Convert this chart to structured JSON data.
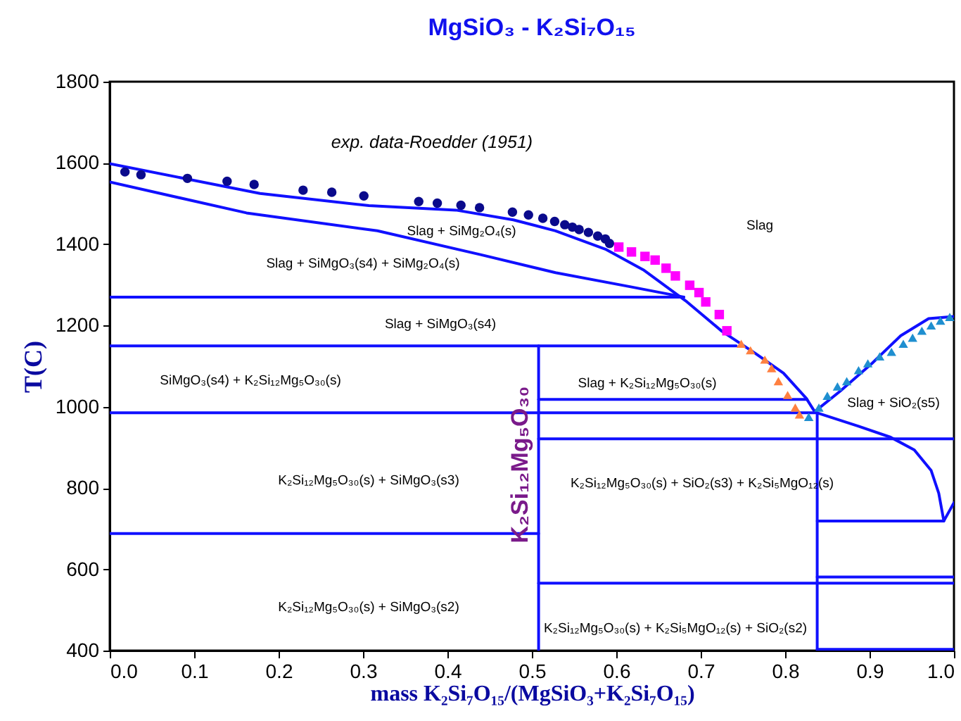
{
  "chart_data": {
    "type": "line",
    "title": "MgSiO₃ - K₂Si₇O₁₅",
    "xlabel": "mass K₂Si₇O₁₅/(MgSiO₃+K₂Si₇O₁₅)",
    "ylabel": "T(C)",
    "xlim": [
      0,
      1
    ],
    "xticks": [
      {
        "value": 0,
        "label": "0.0"
      },
      0.1,
      0.2,
      0.3,
      0.4,
      0.5,
      0.6,
      0.7,
      0.8,
      0.9,
      {
        "value": 1,
        "label": "1.0"
      }
    ],
    "ylim": [
      400,
      1800
    ],
    "yticks": [
      400,
      600,
      800,
      1000,
      1200,
      1400,
      1600,
      1800
    ],
    "grid": false,
    "series": [
      {
        "type": "line",
        "color": "#1010ff",
        "x": [
          0,
          0.178,
          0.307,
          0.41,
          0.478,
          0.528,
          0.587,
          0.632,
          0.682,
          0.725,
          0.765,
          0.798,
          0.825,
          0.835
        ],
        "values": [
          1598,
          1525,
          1495,
          1484,
          1460,
          1433,
          1388,
          1337,
          1261,
          1186,
          1131,
          1083,
          1021,
          988
        ]
      },
      {
        "type": "line",
        "color": "#1010ff",
        "x": [
          0.835,
          0.865,
          0.903,
          0.937,
          0.97,
          1.0
        ],
        "values": [
          988,
          1038,
          1107,
          1175,
          1217,
          1222
        ]
      },
      {
        "type": "line",
        "color": "#1010ff",
        "x": [
          0,
          0.162,
          0.317,
          0.44,
          0.528,
          0.615,
          0.68
        ],
        "values": [
          1553,
          1477,
          1433,
          1374,
          1330,
          1296,
          1270
        ]
      },
      {
        "type": "line",
        "color": "#1010ff",
        "x": [
          0,
          0.68
        ],
        "values": [
          1270,
          1270
        ]
      },
      {
        "type": "line",
        "color": "#1010ff",
        "x": [
          0,
          0.742
        ],
        "values": [
          1150,
          1150
        ]
      },
      {
        "color": "#1010ff",
        "x": [
          0,
          0.838,
          0.887,
          0.925,
          0.953,
          0.973,
          0.982,
          0.988,
          1.0
        ],
        "values": [
          985,
          985,
          952,
          925,
          894,
          843,
          787,
          719,
          764
        ]
      },
      {
        "type": "line",
        "color": "#1010ff",
        "x": [
          0.508,
          0.826
        ],
        "values": [
          1018,
          1018
        ]
      },
      {
        "type": "line",
        "color": "#1010ff",
        "x": [
          0.508,
          0.508
        ],
        "values": [
          1150,
          400
        ]
      },
      {
        "type": "line",
        "color": "#1010ff",
        "x": [
          0,
          0.508
        ],
        "values": [
          688,
          688
        ]
      },
      {
        "type": "line",
        "color": "#1010ff",
        "x": [
          0.508,
          1.0
        ],
        "values": [
          921,
          921
        ]
      },
      {
        "type": "line",
        "color": "#1010ff",
        "x": [
          0.508,
          1.0
        ],
        "values": [
          566,
          566
        ]
      },
      {
        "type": "line",
        "color": "#1010ff",
        "x": [
          0.838,
          0.838
        ],
        "values": [
          985,
          400
        ]
      },
      {
        "type": "line",
        "color": "#1010ff",
        "x": [
          0.838,
          0.988
        ],
        "values": [
          719,
          719
        ]
      },
      {
        "type": "line",
        "color": "#1010ff",
        "x": [
          0.838,
          1.0
        ],
        "values": [
          581,
          581
        ]
      },
      {
        "type": "line",
        "color": "#1010ff",
        "x": [
          0.838,
          1.0
        ],
        "values": [
          403,
          403
        ]
      },
      {
        "type": "scatter",
        "marker": "circle",
        "color": "#0a0a8c",
        "x": [
          0.018,
          0.037,
          0.092,
          0.139,
          0.171,
          0.229,
          0.263,
          0.301,
          0.366,
          0.388,
          0.416,
          0.438,
          0.477,
          0.496,
          0.513,
          0.527,
          0.539,
          0.548,
          0.556,
          0.567,
          0.578,
          0.587,
          0.592
        ],
        "values": [
          1578,
          1571,
          1562,
          1555,
          1547,
          1533,
          1528,
          1519,
          1505,
          1501,
          1496,
          1490,
          1479,
          1472,
          1464,
          1456,
          1448,
          1442,
          1436,
          1429,
          1420,
          1413,
          1402
        ]
      },
      {
        "type": "scatter",
        "marker": "square",
        "color": "#ff00ff",
        "x": [
          0.603,
          0.618,
          0.634,
          0.646,
          0.659,
          0.67,
          0.687,
          0.698,
          0.706,
          0.722,
          0.731
        ],
        "values": [
          1393,
          1381,
          1370,
          1361,
          1341,
          1322,
          1299,
          1281,
          1258,
          1227,
          1187
        ]
      },
      {
        "type": "scatter",
        "marker": "triangle",
        "color": "#ff8040",
        "x": [
          0.748,
          0.759,
          0.776,
          0.784,
          0.792,
          0.803,
          0.812,
          0.817
        ],
        "values": [
          1155,
          1139,
          1116,
          1095,
          1063,
          1029,
          998,
          981
        ]
      },
      {
        "type": "scatter",
        "marker": "triangle",
        "color": "#1f8fd0",
        "x": [
          0.828,
          0.84,
          0.85,
          0.862,
          0.873,
          0.887,
          0.898,
          0.912,
          0.926,
          0.94,
          0.951,
          0.962,
          0.973,
          0.984,
          0.995
        ],
        "values": [
          975,
          998,
          1027,
          1050,
          1063,
          1090,
          1107,
          1124,
          1135,
          1155,
          1170,
          1187,
          1200,
          1212,
          1221
        ]
      }
    ],
    "annotations": [
      "exp. data-Roedder (1951)",
      "Slag + SiMg₂O₄(s)",
      "Slag + SiMgO₃(s4) + SiMg₂O₄(s)",
      "Slag",
      "Slag + SiMgO₃(s4)",
      "SiMgO₃(s4) + K₂Si₁₂Mg₅O₃₀(s)",
      "Slag + K₂Si₁₂Mg₅O₃₀(s)",
      "Slag + SiO₂(s5)",
      "K₂Si₁₂Mg₅O₃₀(s) + SiMgO₃(s3)",
      "K₂Si₁₂Mg₅O₃₀(s) + SiO₂(s3) + K₂Si₅MgO₁₂(s)",
      "K₂Si₁₂Mg₅O₃₀(s) + SiMgO₃(s2)",
      "K₂Si₁₂Mg₅O₃₀(s) + K₂Si₅MgO₁₂(s) + SiO₂(s2)",
      "K₂Si₁₂Mg₅O₃₀"
    ]
  }
}
